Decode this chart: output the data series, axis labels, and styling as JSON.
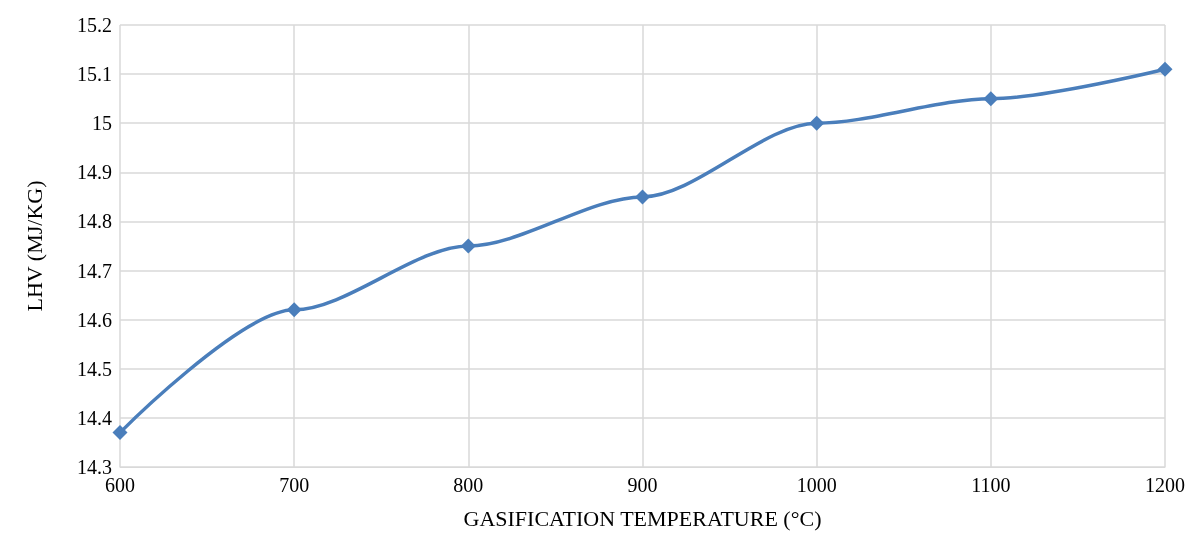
{
  "chart_data": {
    "type": "line",
    "xlabel": "GASIFICATION TEMPERATURE (°C)",
    "ylabel": "LHV (MJ/KG)",
    "x": [
      600,
      700,
      800,
      900,
      1000,
      1100,
      1200
    ],
    "series": [
      {
        "color": "#4a7ebb",
        "values": [
          14.37,
          14.62,
          14.75,
          14.85,
          15.0,
          15.05,
          15.11
        ]
      }
    ],
    "xlim": [
      600,
      1200
    ],
    "xticks": [
      600,
      700,
      800,
      900,
      1000,
      1100,
      1200
    ],
    "ylim": [
      14.3,
      15.2
    ],
    "yticks": [
      14.3,
      14.4,
      14.5,
      14.6,
      14.7,
      14.8,
      14.9,
      15,
      15.1,
      15.2
    ],
    "grid": true,
    "marker": "diamond",
    "line_style": "solid"
  }
}
